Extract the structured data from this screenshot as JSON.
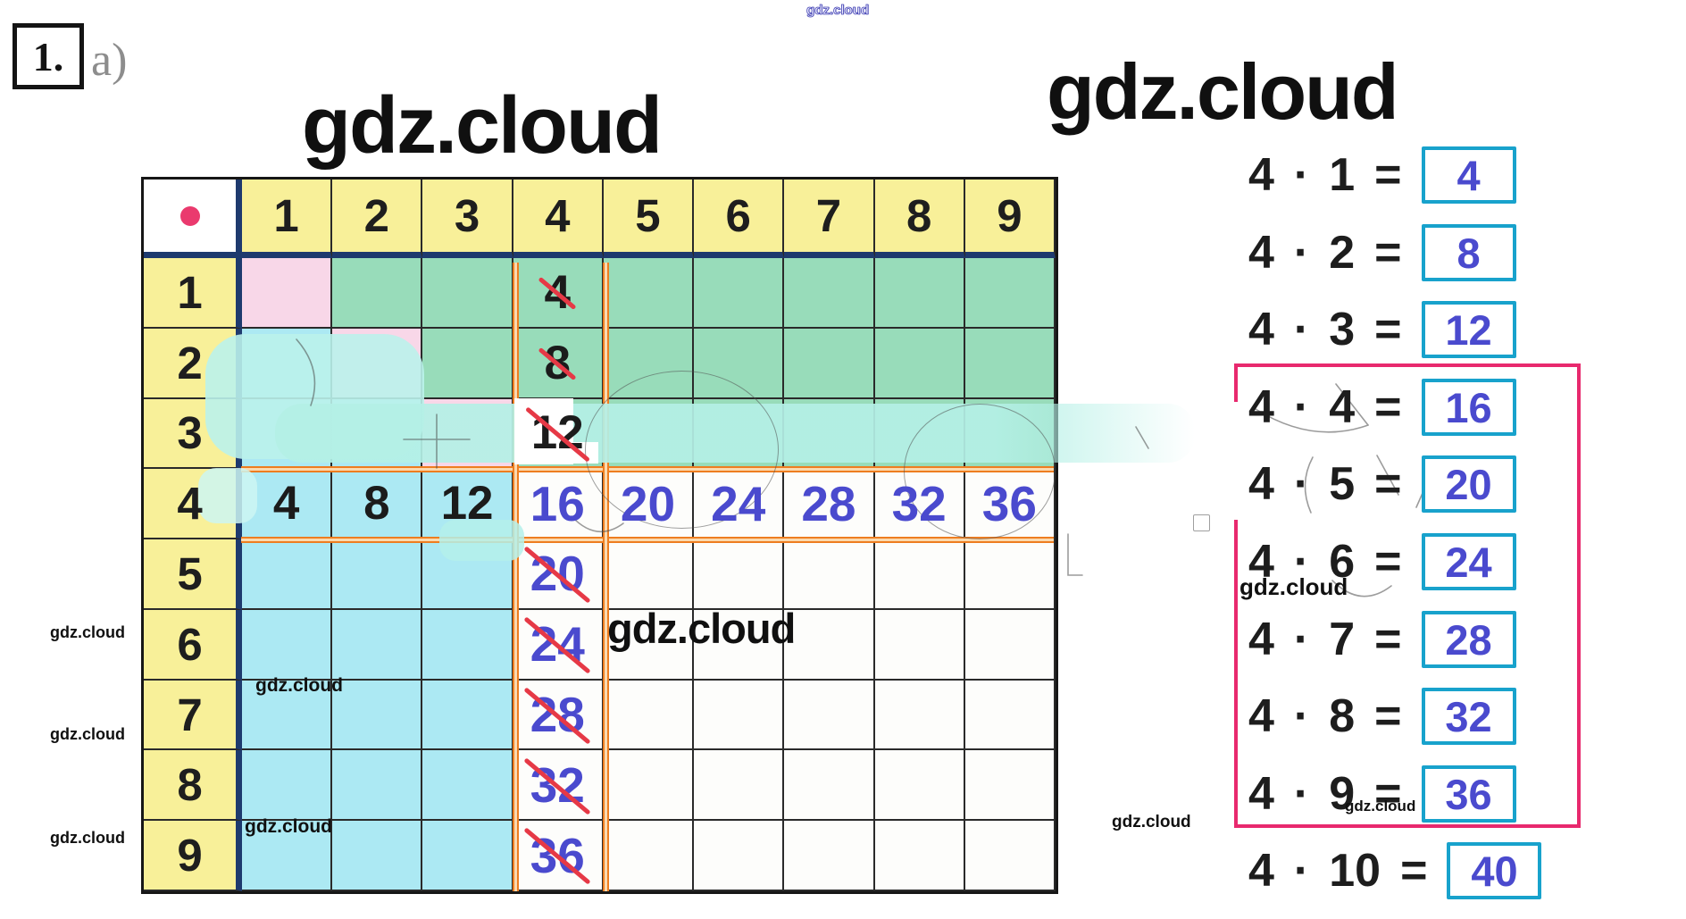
{
  "page": {
    "task_number": "1.",
    "part_label": "a)"
  },
  "watermark": {
    "text": "gdz.cloud"
  },
  "table": {
    "corner_symbol": "multiplication-dot",
    "col_headers": [
      "1",
      "2",
      "3",
      "4",
      "5",
      "6",
      "7",
      "8",
      "9"
    ],
    "row_headers": [
      "1",
      "2",
      "3",
      "4",
      "5",
      "6",
      "7",
      "8",
      "9"
    ],
    "col4_upper_values": [
      "4",
      "8",
      "12"
    ],
    "row4_values": [
      "4",
      "8",
      "12",
      "16",
      "20",
      "24",
      "28",
      "32",
      "36"
    ],
    "col4_lower_values": [
      "20",
      "24",
      "28",
      "32",
      "36"
    ],
    "crossed_out": [
      "4",
      "8",
      "12",
      "20",
      "24",
      "28",
      "32",
      "36"
    ]
  },
  "equations": {
    "multiplier": "4",
    "operator": "·",
    "equals": "=",
    "rows": [
      {
        "factor": "1",
        "answer": "4",
        "in_frame": false
      },
      {
        "factor": "2",
        "answer": "8",
        "in_frame": false
      },
      {
        "factor": "3",
        "answer": "12",
        "in_frame": false
      },
      {
        "factor": "4",
        "answer": "16",
        "in_frame": true
      },
      {
        "factor": "5",
        "answer": "20",
        "in_frame": true
      },
      {
        "factor": "6",
        "answer": "24",
        "in_frame": true
      },
      {
        "factor": "7",
        "answer": "28",
        "in_frame": true
      },
      {
        "factor": "8",
        "answer": "32",
        "in_frame": true
      },
      {
        "factor": "9",
        "answer": "36",
        "in_frame": true
      },
      {
        "factor": "10",
        "answer": "40",
        "in_frame": false
      }
    ]
  },
  "colors": {
    "header_yellow": "#f8f099",
    "green": "#98dcba",
    "pink": "#f8d7e8",
    "cyan": "#ace9f3",
    "navy_border": "#1e3a6e",
    "orange_highlight": "#ee7d20",
    "red_strike": "#e63946",
    "ink_blue": "#4a4ace",
    "answer_box_teal": "#18a2cc",
    "frame_pink": "#e8296e",
    "dot_crimson": "#ea3a6e"
  }
}
